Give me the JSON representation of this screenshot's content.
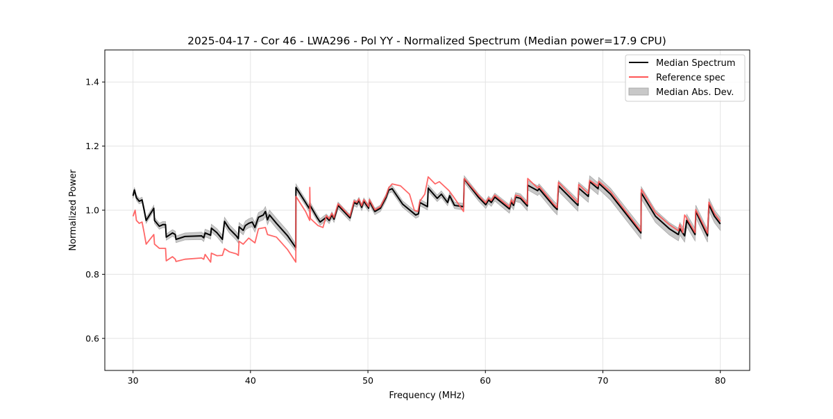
{
  "chart_data": {
    "type": "line",
    "title": "2025-04-17 - Cor 46 - LWA296 - Pol YY - Normalized Spectrum (Median power=17.9 CPU)",
    "xlabel": "Frequency (MHz)",
    "ylabel": "Normalized Power",
    "xlim": [
      27.6,
      82.5
    ],
    "ylim": [
      0.5,
      1.5
    ],
    "xticks": [
      30,
      40,
      50,
      60,
      70,
      80
    ],
    "xtick_labels": [
      "30",
      "40",
      "50",
      "60",
      "70",
      "80"
    ],
    "yticks": [
      0.6,
      0.8,
      1.0,
      1.2,
      1.4
    ],
    "ytick_labels": [
      "0.6",
      "0.8",
      "1.0",
      "1.2",
      "1.4"
    ],
    "grid": true,
    "legend_position": "top-right",
    "legend": [
      "Median Spectrum",
      "Reference spec",
      "Median Abs. Dev."
    ],
    "colors": {
      "median": "#000000",
      "reference": "#ff5555",
      "mad": "#c8c8c8"
    },
    "median": [
      [
        30.0,
        1.045
      ],
      [
        30.12,
        1.063
      ],
      [
        30.29,
        1.039
      ],
      [
        30.53,
        1.028
      ],
      [
        30.77,
        1.032
      ],
      [
        30.94,
        1.002
      ],
      [
        31.12,
        0.968
      ],
      [
        31.77,
        1.006
      ],
      [
        31.83,
        0.968
      ],
      [
        32.24,
        0.95
      ],
      [
        32.54,
        0.955
      ],
      [
        32.77,
        0.955
      ],
      [
        32.83,
        0.916
      ],
      [
        33.36,
        0.929
      ],
      [
        33.6,
        0.924
      ],
      [
        33.66,
        0.909
      ],
      [
        34.42,
        0.918
      ],
      [
        35.84,
        0.92
      ],
      [
        36.02,
        0.914
      ],
      [
        36.14,
        0.929
      ],
      [
        36.61,
        0.922
      ],
      [
        36.67,
        0.944
      ],
      [
        37.14,
        0.93
      ],
      [
        37.61,
        0.909
      ],
      [
        37.79,
        0.965
      ],
      [
        38.2,
        0.942
      ],
      [
        38.79,
        0.92
      ],
      [
        38.97,
        0.911
      ],
      [
        39.03,
        0.948
      ],
      [
        39.38,
        0.937
      ],
      [
        39.56,
        0.952
      ],
      [
        39.85,
        0.959
      ],
      [
        40.15,
        0.963
      ],
      [
        40.38,
        0.946
      ],
      [
        40.68,
        0.978
      ],
      [
        41.09,
        0.985
      ],
      [
        41.27,
        0.996
      ],
      [
        41.45,
        0.97
      ],
      [
        41.62,
        0.985
      ],
      [
        42.21,
        0.959
      ],
      [
        43.16,
        0.92
      ],
      [
        43.86,
        0.883
      ],
      [
        43.87,
        1.071
      ],
      [
        44.69,
        1.024
      ],
      [
        44.99,
        1.006
      ],
      [
        45.04,
        1.017
      ],
      [
        45.69,
        0.976
      ],
      [
        45.93,
        0.963
      ],
      [
        46.46,
        0.978
      ],
      [
        46.7,
        0.968
      ],
      [
        46.93,
        0.985
      ],
      [
        47.11,
        0.972
      ],
      [
        47.46,
        1.015
      ],
      [
        48.47,
        0.976
      ],
      [
        48.82,
        1.024
      ],
      [
        49.06,
        1.019
      ],
      [
        49.23,
        1.03
      ],
      [
        49.47,
        1.009
      ],
      [
        49.65,
        1.028
      ],
      [
        50.06,
        1.006
      ],
      [
        50.12,
        1.028
      ],
      [
        50.59,
        0.996
      ],
      [
        51.06,
        1.006
      ],
      [
        51.53,
        1.039
      ],
      [
        51.77,
        1.063
      ],
      [
        52.06,
        1.067
      ],
      [
        52.95,
        1.019
      ],
      [
        54.07,
        0.985
      ],
      [
        54.31,
        0.989
      ],
      [
        54.42,
        1.024
      ],
      [
        55.07,
        1.011
      ],
      [
        55.13,
        1.069
      ],
      [
        55.9,
        1.037
      ],
      [
        56.25,
        1.05
      ],
      [
        56.78,
        1.024
      ],
      [
        56.96,
        1.045
      ],
      [
        57.37,
        1.015
      ],
      [
        58.14,
        1.011
      ],
      [
        58.2,
        1.097
      ],
      [
        59.44,
        1.039
      ],
      [
        60.03,
        1.017
      ],
      [
        60.27,
        1.032
      ],
      [
        60.5,
        1.024
      ],
      [
        60.8,
        1.041
      ],
      [
        62.04,
        1.004
      ],
      [
        62.21,
        1.026
      ],
      [
        62.39,
        1.015
      ],
      [
        62.57,
        1.041
      ],
      [
        62.98,
        1.037
      ],
      [
        63.57,
        1.013
      ],
      [
        63.6,
        1.078
      ],
      [
        64.45,
        1.061
      ],
      [
        64.57,
        1.067
      ],
      [
        65.81,
        1.013
      ],
      [
        66.11,
        1.002
      ],
      [
        66.22,
        1.076
      ],
      [
        67.88,
        1.015
      ],
      [
        67.94,
        1.069
      ],
      [
        68.76,
        1.043
      ],
      [
        68.88,
        1.089
      ],
      [
        69.59,
        1.067
      ],
      [
        69.65,
        1.084
      ],
      [
        70.65,
        1.05
      ],
      [
        73.24,
        0.929
      ],
      [
        73.27,
        1.054
      ],
      [
        74.48,
        0.981
      ],
      [
        75.66,
        0.942
      ],
      [
        76.43,
        0.924
      ],
      [
        76.55,
        0.942
      ],
      [
        76.96,
        0.92
      ],
      [
        77.14,
        0.968
      ],
      [
        77.85,
        0.924
      ],
      [
        77.91,
        0.996
      ],
      [
        78.91,
        0.92
      ],
      [
        79.03,
        1.017
      ],
      [
        79.5,
        0.981
      ],
      [
        80.0,
        0.957
      ]
    ],
    "reference": [
      [
        30.0,
        0.981
      ],
      [
        30.18,
        1.0
      ],
      [
        30.29,
        0.968
      ],
      [
        30.53,
        0.959
      ],
      [
        30.77,
        0.963
      ],
      [
        30.94,
        0.931
      ],
      [
        31.12,
        0.894
      ],
      [
        31.77,
        0.924
      ],
      [
        31.83,
        0.894
      ],
      [
        32.24,
        0.881
      ],
      [
        32.77,
        0.881
      ],
      [
        32.83,
        0.842
      ],
      [
        33.36,
        0.855
      ],
      [
        33.6,
        0.847
      ],
      [
        33.66,
        0.84
      ],
      [
        34.42,
        0.847
      ],
      [
        35.84,
        0.851
      ],
      [
        36.02,
        0.847
      ],
      [
        36.14,
        0.862
      ],
      [
        36.61,
        0.838
      ],
      [
        36.67,
        0.866
      ],
      [
        37.14,
        0.858
      ],
      [
        37.61,
        0.859
      ],
      [
        37.79,
        0.88
      ],
      [
        38.2,
        0.87
      ],
      [
        38.79,
        0.864
      ],
      [
        38.97,
        0.859
      ],
      [
        39.03,
        0.903
      ],
      [
        39.38,
        0.894
      ],
      [
        39.85,
        0.913
      ],
      [
        40.38,
        0.898
      ],
      [
        40.68,
        0.942
      ],
      [
        41.27,
        0.946
      ],
      [
        41.45,
        0.924
      ],
      [
        42.21,
        0.916
      ],
      [
        43.16,
        0.877
      ],
      [
        43.86,
        0.838
      ],
      [
        43.87,
        1.043
      ],
      [
        44.69,
        0.996
      ],
      [
        45.04,
        0.968
      ],
      [
        45.05,
        1.071
      ],
      [
        45.1,
        0.974
      ],
      [
        45.75,
        0.952
      ],
      [
        46.17,
        0.946
      ],
      [
        46.46,
        0.983
      ],
      [
        46.7,
        0.973
      ],
      [
        46.93,
        0.99
      ],
      [
        47.11,
        0.977
      ],
      [
        47.46,
        1.02
      ],
      [
        48.47,
        0.981
      ],
      [
        48.82,
        1.029
      ],
      [
        49.06,
        1.024
      ],
      [
        49.23,
        1.035
      ],
      [
        49.47,
        1.014
      ],
      [
        49.65,
        1.033
      ],
      [
        50.06,
        1.011
      ],
      [
        50.12,
        1.033
      ],
      [
        50.59,
        1.001
      ],
      [
        51.06,
        1.011
      ],
      [
        51.53,
        1.044
      ],
      [
        51.77,
        1.07
      ],
      [
        52.06,
        1.082
      ],
      [
        52.77,
        1.076
      ],
      [
        53.54,
        1.05
      ],
      [
        53.95,
        1.0
      ],
      [
        54.25,
        0.996
      ],
      [
        54.42,
        1.028
      ],
      [
        54.84,
        1.05
      ],
      [
        55.13,
        1.104
      ],
      [
        55.72,
        1.082
      ],
      [
        56.08,
        1.089
      ],
      [
        56.9,
        1.061
      ],
      [
        57.26,
        1.043
      ],
      [
        58.14,
        0.996
      ],
      [
        58.2,
        1.099
      ],
      [
        59.44,
        1.045
      ],
      [
        60.03,
        1.023
      ],
      [
        60.27,
        1.038
      ],
      [
        60.5,
        1.03
      ],
      [
        60.8,
        1.047
      ],
      [
        62.04,
        1.01
      ],
      [
        62.21,
        1.032
      ],
      [
        62.39,
        1.021
      ],
      [
        62.57,
        1.047
      ],
      [
        62.98,
        1.043
      ],
      [
        63.57,
        1.019
      ],
      [
        63.6,
        1.099
      ],
      [
        64.45,
        1.069
      ],
      [
        64.57,
        1.075
      ],
      [
        65.81,
        1.019
      ],
      [
        66.11,
        1.008
      ],
      [
        66.22,
        1.087
      ],
      [
        67.88,
        1.023
      ],
      [
        67.94,
        1.08
      ],
      [
        68.76,
        1.052
      ],
      [
        68.88,
        1.093
      ],
      [
        69.59,
        1.075
      ],
      [
        69.65,
        1.09
      ],
      [
        70.65,
        1.058
      ],
      [
        73.24,
        0.935
      ],
      [
        73.27,
        1.065
      ],
      [
        74.48,
        0.992
      ],
      [
        75.66,
        0.955
      ],
      [
        76.43,
        0.936
      ],
      [
        76.55,
        0.955
      ],
      [
        76.8,
        0.93
      ],
      [
        76.96,
        0.985
      ],
      [
        77.14,
        0.975
      ],
      [
        77.85,
        0.93
      ],
      [
        77.91,
        1.002
      ],
      [
        78.91,
        0.928
      ],
      [
        79.03,
        1.025
      ],
      [
        79.5,
        0.99
      ],
      [
        80.0,
        0.965
      ]
    ],
    "mad_halfwidth": [
      [
        30,
        0.008
      ],
      [
        43,
        0.016
      ],
      [
        44,
        0.01
      ],
      [
        58,
        0.01
      ],
      [
        68,
        0.018
      ],
      [
        80,
        0.02
      ]
    ]
  }
}
